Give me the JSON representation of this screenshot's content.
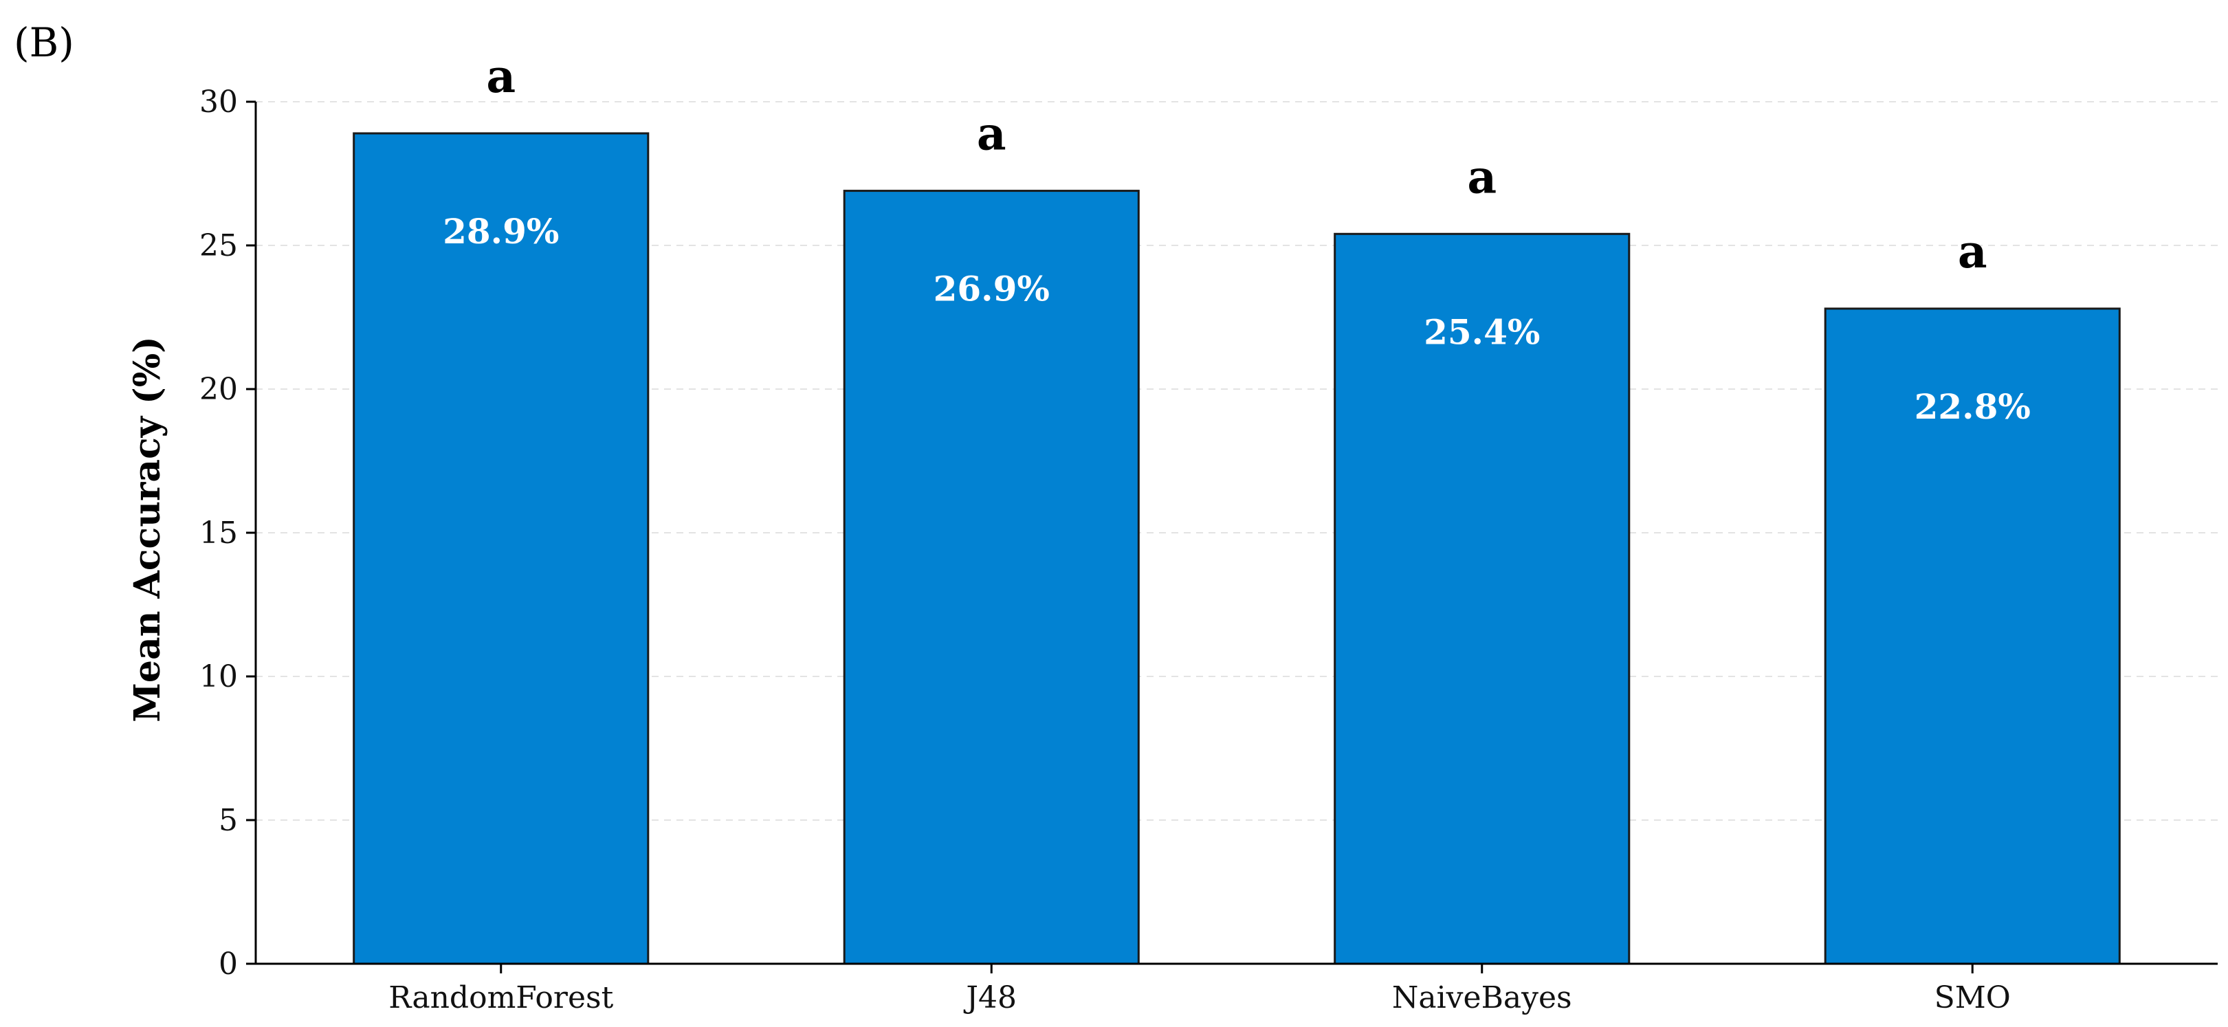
{
  "panel_label": "(B)",
  "colors": {
    "bar_fill": "#0282D2",
    "bar_edge": "#1a1a1a",
    "grid": "#e3e3e3",
    "axis": "#000000"
  },
  "chart_data": {
    "type": "bar",
    "categories": [
      "RandomForest",
      "J48",
      "NaiveBayes",
      "SMO"
    ],
    "values": [
      28.9,
      26.9,
      25.4,
      22.8
    ],
    "value_labels": [
      "28.9%",
      "26.9%",
      "25.4%",
      "22.8%"
    ],
    "significance_letters": [
      "a",
      "a",
      "a",
      "a"
    ],
    "ylabel": "Mean Accuracy (%)",
    "xlabel": "",
    "ylim": [
      0,
      30
    ],
    "yticks": [
      0,
      5,
      10,
      15,
      20,
      25,
      30
    ],
    "grid": "horizontal dashed"
  }
}
